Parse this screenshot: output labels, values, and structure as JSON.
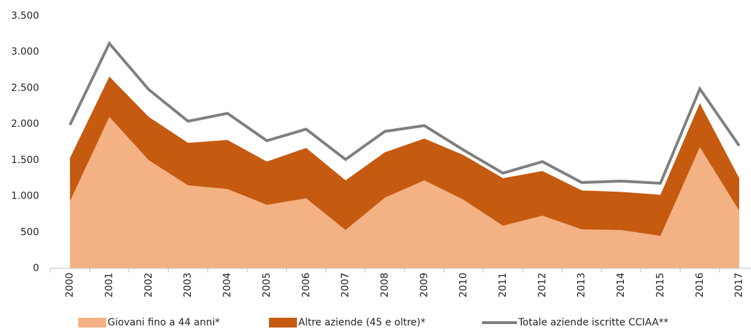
{
  "chart_data": {
    "type": "stacked_area_line",
    "categories": [
      "2000",
      "2001",
      "2002",
      "2003",
      "2004",
      "2005",
      "2006",
      "2007",
      "2008",
      "2009",
      "2010",
      "2011",
      "2012",
      "2013",
      "2014",
      "2015",
      "2016",
      "2017"
    ],
    "series": [
      {
        "name": "Giovani fino a 44 anni*",
        "color": "#f4b183",
        "stack": true,
        "values": [
          930,
          2100,
          1500,
          1150,
          1100,
          880,
          970,
          530,
          980,
          1220,
          950,
          590,
          730,
          540,
          530,
          450,
          1680,
          800
        ]
      },
      {
        "name": "Altre aziende (45 e oltre)*",
        "color": "#c55a11",
        "stack": true,
        "values": [
          600,
          560,
          600,
          590,
          680,
          600,
          700,
          690,
          630,
          580,
          620,
          660,
          620,
          540,
          530,
          570,
          610,
          450
        ]
      },
      {
        "name": "Totale aziende iscritte CCIAA**",
        "color": "#7f7f7f",
        "stack": false,
        "values": [
          1990,
          3120,
          2480,
          2040,
          2150,
          1770,
          1930,
          1510,
          1900,
          1980,
          1640,
          1320,
          1480,
          1190,
          1210,
          1180,
          2490,
          1700
        ]
      }
    ],
    "ylim": [
      0,
      3500
    ],
    "yticks": [
      0,
      500,
      {
        "value": 1000,
        "label": "1.000"
      },
      {
        "value": 1500,
        "label": "1.500"
      },
      {
        "value": 2000,
        "label": "2.000"
      },
      {
        "value": 2500,
        "label": "2.500"
      },
      {
        "value": 3000,
        "label": "3.000"
      },
      {
        "value": 3500,
        "label": "3.500"
      }
    ],
    "grid": false,
    "legend": "bottom"
  }
}
